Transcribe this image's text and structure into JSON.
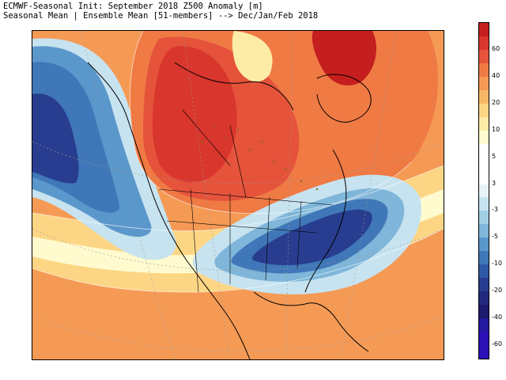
{
  "header": {
    "line1": "ECMWF-Seasonal Init: September 2018 Z500 Anomaly [m]",
    "line2": "Seasonal Mean | Ensemble Mean [51-members] --> Dec/Jan/Feb 2018"
  },
  "legend": {
    "levels": [
      {
        "label": "",
        "color": "#c41e1e"
      },
      {
        "label": "60",
        "color": "#d9362d"
      },
      {
        "label": "",
        "color": "#e5533b"
      },
      {
        "label": "40",
        "color": "#f07a44"
      },
      {
        "label": "",
        "color": "#f59a55"
      },
      {
        "label": "20",
        "color": "#f8b767"
      },
      {
        "label": "",
        "color": "#fcd685"
      },
      {
        "label": "10",
        "color": "#fdeca6"
      },
      {
        "label": "",
        "color": "#fffbcf"
      },
      {
        "label": "5",
        "color": "#ffffff"
      },
      {
        "label": "",
        "color": "#ffffff"
      },
      {
        "label": "3",
        "color": "#ffffff"
      },
      {
        "label": "",
        "color": "#e6f3f9"
      },
      {
        "label": "-3",
        "color": "#c7e3f0"
      },
      {
        "label": "",
        "color": "#a3cfe5"
      },
      {
        "label": "-5",
        "color": "#7fb6d9"
      },
      {
        "label": "",
        "color": "#5a97cb"
      },
      {
        "label": "-10",
        "color": "#3f77b8"
      },
      {
        "label": "",
        "color": "#2f58a4"
      },
      {
        "label": "-20",
        "color": "#283d8f"
      },
      {
        "label": "",
        "color": "#22297c"
      },
      {
        "label": "-40",
        "color": "#1b1a6c"
      },
      {
        "label": "",
        "color": "#2418a0"
      },
      {
        "label": "-60",
        "color": "#2a10b5"
      },
      {
        "label": "",
        "color": "#2a10b5"
      }
    ]
  },
  "map_colors": {
    "background": "#f59a55",
    "positive_strong": "#c41e1e",
    "positive": "#e5533b",
    "positive_mid": "#f07a44",
    "positive_weak": "#fcd685",
    "neutral": "#fffbcf",
    "negative_weak": "#c7e3f0",
    "negative": "#5a97cb",
    "negative_strong": "#283d8f"
  }
}
